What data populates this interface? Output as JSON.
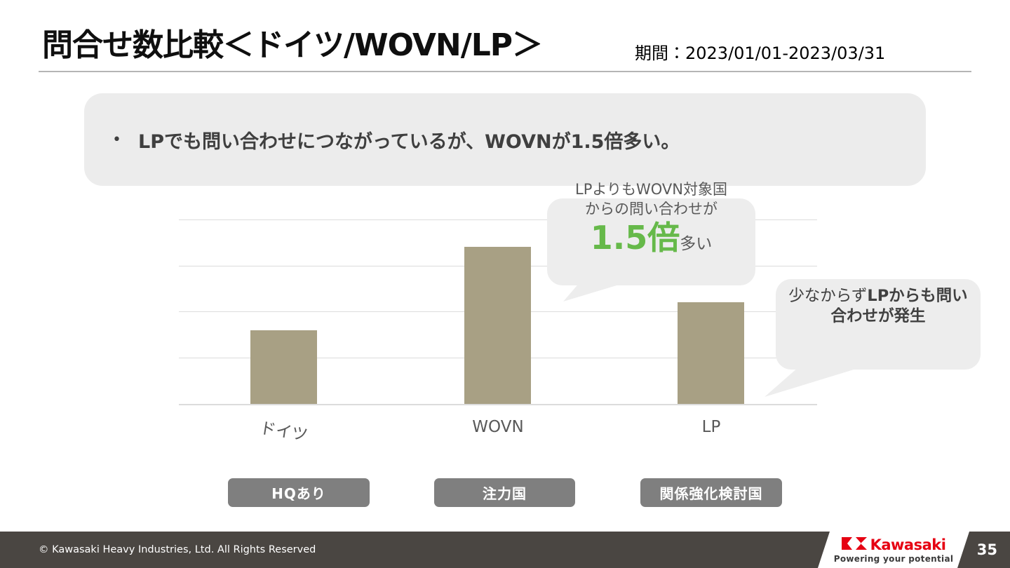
{
  "header": {
    "title": "問合せ数比較＜ドイツ/WOVN/LP＞",
    "period": "期間：2023/01/01-2023/03/31"
  },
  "summary": {
    "marker": "•",
    "bullet_text": "LPでも問い合わせにつながっているが、WOVNが1.5倍多い。"
  },
  "chart_data": {
    "type": "bar",
    "categories": [
      "ドイツ",
      "WOVN",
      "LP"
    ],
    "values": [
      1.6,
      3.4,
      2.2
    ],
    "title": "",
    "xlabel": "",
    "ylabel": "",
    "ylim": [
      0,
      4
    ],
    "gridlines": true,
    "gridline_count": 5,
    "y_tick_labels": [],
    "legend": false,
    "bar_color": "#a8a084",
    "value_note": "y axis unlabeled; values estimated in gridline units; WOVN is about 1.5x LP"
  },
  "callouts": {
    "wovn": {
      "line1": "LPよりもWOVN対象国",
      "line2": "からの問い合わせが",
      "highlight": "1.5倍",
      "suffix": "多い",
      "highlight_color": "#66b94a"
    },
    "lp": {
      "prefix": "少なからず",
      "bold_text": "LPからも問い合わせが発生"
    }
  },
  "badges": [
    {
      "label": "HQあり"
    },
    {
      "label": "注力国"
    },
    {
      "label": "関係強化検討国"
    }
  ],
  "footer": {
    "copyright": "© Kawasaki Heavy Industries, Ltd. All Rights Reserved",
    "logo_text": "Kawasaki",
    "logo_tagline": "Powering your potential",
    "page_number": "35",
    "brand_red": "#e60012",
    "footer_bg": "#4a4642"
  }
}
